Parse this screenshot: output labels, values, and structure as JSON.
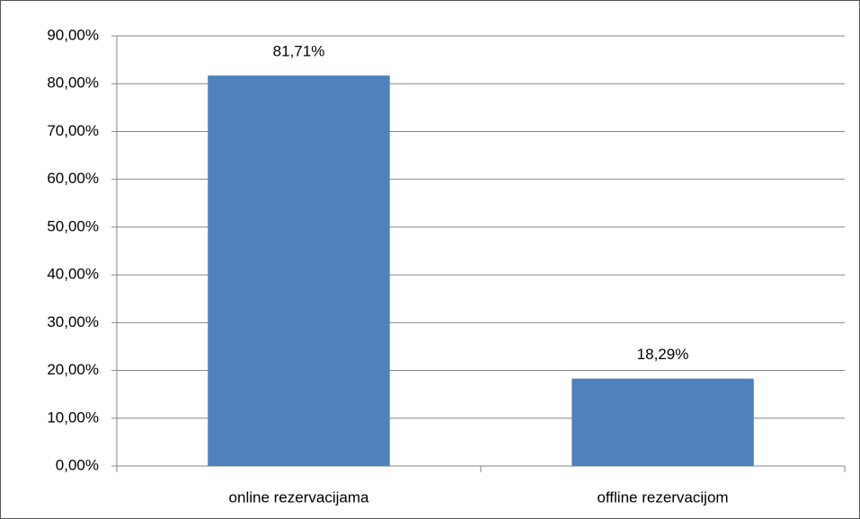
{
  "chart_data": {
    "type": "bar",
    "categories": [
      "online rezervacijama",
      "offline rezervacijom"
    ],
    "values": [
      81.71,
      18.29
    ],
    "value_labels": [
      "81,71%",
      "18,29%"
    ],
    "color": "#4f81bd",
    "ylim": [
      0,
      90
    ],
    "yticks": [
      {
        "value": 0,
        "label": "0,00%"
      },
      {
        "value": 10,
        "label": "10,00%"
      },
      {
        "value": 20,
        "label": "20,00%"
      },
      {
        "value": 30,
        "label": "30,00%"
      },
      {
        "value": 40,
        "label": "40,00%"
      },
      {
        "value": 50,
        "label": "50,00%"
      },
      {
        "value": 60,
        "label": "60,00%"
      },
      {
        "value": 70,
        "label": "70,00%"
      },
      {
        "value": 80,
        "label": "80,00%"
      },
      {
        "value": 90,
        "label": "90,00%"
      }
    ],
    "grid": true
  }
}
